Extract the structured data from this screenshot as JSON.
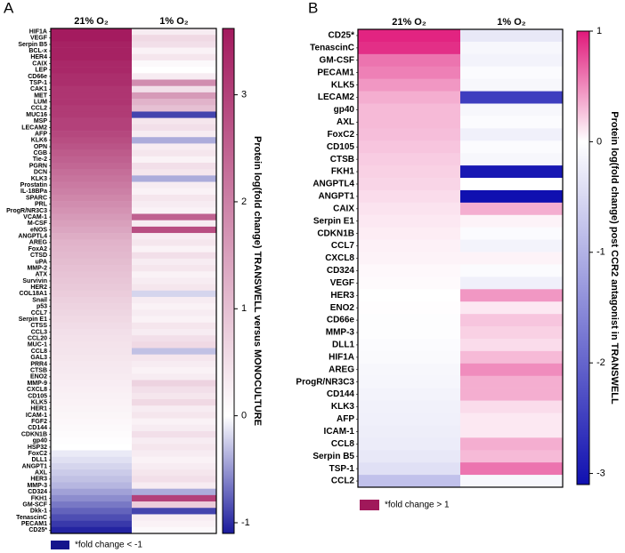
{
  "chart_data": [
    {
      "type": "heatmap",
      "panel_label": "A",
      "columns": [
        "21% O₂",
        "1% O₂"
      ],
      "rows": [
        "HIF1A",
        "VEGF",
        "Serpin B5",
        "BCL-x",
        "HER4",
        "CAIX",
        "LEP",
        "CD66e",
        "TSP-1",
        "CAK1",
        "MET",
        "LUM",
        "CCL2",
        "MUC16",
        "MSP",
        "LECAM2",
        "AFP",
        "KLK6",
        "OPN",
        "CGB",
        "Tie-2",
        "PGRN",
        "DCN",
        "KLK3",
        "Prostatin",
        "IL-18BPa",
        "SPARC",
        "PRL",
        "ProgR/NR3C3",
        "VCAM-1",
        "M-CSF",
        "eNOS",
        "ANGPTL4",
        "AREG",
        "FoxA2",
        "CTSD",
        "uPA",
        "MMP-2",
        "ATX",
        "Survivin",
        "HER2",
        "COL18A1",
        "Snail",
        "p53",
        "CCL7",
        "Serpin E1",
        "CTSS",
        "CCL3",
        "CCL20",
        "MUC-1",
        "CCL8",
        "GAL3",
        "PRR4",
        "CTSB",
        "ENO2",
        "MMP-9",
        "CXCL8",
        "CD105",
        "KLK5",
        "HER1",
        "ICAM-1",
        "FGF2",
        "CD144",
        "CDKN1B",
        "gp40",
        "HSP32",
        "FoxC2",
        "DLL1",
        "ANGPT1",
        "AXL",
        "HER3",
        "MMP-3",
        "CD324",
        "FKH1",
        "GM-SCF",
        "Dkk-1",
        "TenascinC",
        "PECAM1",
        "CD25*"
      ],
      "values": [
        [
          3.6,
          0.3
        ],
        [
          3.6,
          0.6
        ],
        [
          3.5,
          0.5
        ],
        [
          3.5,
          0.2
        ],
        [
          3.5,
          0.4
        ],
        [
          3.4,
          0.1
        ],
        [
          3.4,
          0.0
        ],
        [
          3.3,
          0.3
        ],
        [
          3.3,
          1.8
        ],
        [
          3.2,
          0.5
        ],
        [
          3.2,
          1.6
        ],
        [
          3.2,
          1.2
        ],
        [
          3.1,
          1.0
        ],
        [
          3.1,
          -0.9
        ],
        [
          3.0,
          0.4
        ],
        [
          3.0,
          0.5
        ],
        [
          2.9,
          0.3
        ],
        [
          2.8,
          -0.4
        ],
        [
          2.7,
          0.3
        ],
        [
          2.6,
          0.4
        ],
        [
          2.5,
          0.2
        ],
        [
          2.4,
          0.5
        ],
        [
          2.3,
          0.4
        ],
        [
          2.2,
          -0.4
        ],
        [
          2.1,
          0.3
        ],
        [
          2.0,
          0.2
        ],
        [
          1.9,
          0.4
        ],
        [
          1.8,
          0.3
        ],
        [
          1.7,
          0.2
        ],
        [
          1.6,
          2.5
        ],
        [
          1.5,
          0.3
        ],
        [
          1.4,
          2.8
        ],
        [
          1.3,
          0.3
        ],
        [
          1.2,
          0.4
        ],
        [
          1.15,
          0.2
        ],
        [
          1.1,
          0.5
        ],
        [
          1.05,
          0.3
        ],
        [
          1.0,
          0.4
        ],
        [
          0.95,
          0.2
        ],
        [
          0.9,
          0.3
        ],
        [
          0.85,
          0.4
        ],
        [
          0.8,
          -0.2
        ],
        [
          0.75,
          0.3
        ],
        [
          0.7,
          0.2
        ],
        [
          0.65,
          0.3
        ],
        [
          0.6,
          0.2
        ],
        [
          0.55,
          0.4
        ],
        [
          0.5,
          0.3
        ],
        [
          0.48,
          0.5
        ],
        [
          0.45,
          0.6
        ],
        [
          0.42,
          -0.3
        ],
        [
          0.4,
          0.4
        ],
        [
          0.37,
          0.3
        ],
        [
          0.34,
          0.2
        ],
        [
          0.31,
          0.3
        ],
        [
          0.28,
          0.7
        ],
        [
          0.25,
          0.5
        ],
        [
          0.22,
          0.4
        ],
        [
          0.2,
          0.6
        ],
        [
          0.18,
          0.3
        ],
        [
          0.15,
          0.4
        ],
        [
          0.12,
          0.2
        ],
        [
          0.1,
          0.3
        ],
        [
          0.07,
          0.5
        ],
        [
          0.03,
          0.3
        ],
        [
          0.0,
          0.4
        ],
        [
          -0.1,
          0.3
        ],
        [
          -0.15,
          0.2
        ],
        [
          -0.2,
          0.3
        ],
        [
          -0.25,
          0.4
        ],
        [
          -0.3,
          0.5
        ],
        [
          -0.35,
          0.3
        ],
        [
          -0.45,
          -0.4
        ],
        [
          -0.55,
          3.0
        ],
        [
          -0.65,
          0.8
        ],
        [
          -0.75,
          -0.9
        ],
        [
          -0.85,
          0.3
        ],
        [
          -0.95,
          0.2
        ],
        [
          -1.05,
          0.1
        ]
      ],
      "clim": [
        -1.1,
        3.62
      ],
      "cticks": [
        -1,
        0,
        1,
        2,
        3
      ],
      "colors": {
        "low": "#1a1a9c",
        "mid": "#ffffff",
        "high": "#a31a5e"
      },
      "colorbar_label": "Protein log(fold change) TRANSWELL versus MONOCULTURE",
      "legend": {
        "color": "#14148c",
        "label": "*fold change < -1"
      }
    },
    {
      "type": "heatmap",
      "panel_label": "B",
      "columns": [
        "21% O₂",
        "1% O₂"
      ],
      "rows": [
        "CD25*",
        "TenascinC",
        "GM-CSF",
        "PECAM1",
        "KLK5",
        "LECAM2",
        "gp40",
        "AXL",
        "FoxC2",
        "CD105",
        "CTSB",
        "FKH1",
        "ANGPTL4",
        "ANGPT1",
        "CAIX",
        "Serpin E1",
        "CDKN1B",
        "CCL7",
        "CXCL8",
        "CD324",
        "VEGF",
        "HER3",
        "ENO2",
        "CD66e",
        "MMP-3",
        "DLL1",
        "HIF1A",
        "AREG",
        "ProgR/NR3C3",
        "CD144",
        "KLK3",
        "AFP",
        "ICAM-1",
        "CCL8",
        "Serpin B5",
        "TSP-1",
        "CCL2"
      ],
      "values": [
        [
          0.95,
          -0.3
        ],
        [
          0.9,
          -0.1
        ],
        [
          0.6,
          -0.15
        ],
        [
          0.55,
          -0.05
        ],
        [
          0.45,
          -0.1
        ],
        [
          0.35,
          -2.5
        ],
        [
          0.3,
          -0.1
        ],
        [
          0.3,
          -0.05
        ],
        [
          0.28,
          -0.2
        ],
        [
          0.25,
          -0.05
        ],
        [
          0.22,
          -0.1
        ],
        [
          0.2,
          -3.0
        ],
        [
          0.18,
          0.0
        ],
        [
          0.15,
          -3.1
        ],
        [
          0.12,
          0.35
        ],
        [
          0.1,
          0.05
        ],
        [
          0.08,
          -0.05
        ],
        [
          0.06,
          -0.15
        ],
        [
          0.05,
          0.05
        ],
        [
          0.03,
          -0.05
        ],
        [
          0.02,
          -0.2
        ],
        [
          0.0,
          0.45
        ],
        [
          0.01,
          0.1
        ],
        [
          -0.02,
          0.25
        ],
        [
          -0.03,
          0.2
        ],
        [
          -0.05,
          0.15
        ],
        [
          -0.07,
          0.3
        ],
        [
          -0.1,
          0.5
        ],
        [
          -0.12,
          0.35
        ],
        [
          -0.15,
          0.35
        ],
        [
          -0.18,
          0.15
        ],
        [
          -0.2,
          0.1
        ],
        [
          -0.22,
          0.1
        ],
        [
          -0.25,
          0.35
        ],
        [
          -0.3,
          0.3
        ],
        [
          -0.4,
          0.6
        ],
        [
          -0.8,
          -0.1
        ]
      ],
      "clim": [
        -3.1,
        1.0
      ],
      "cticks": [
        -3,
        -2,
        -1,
        0,
        1
      ],
      "colors": {
        "low": "#1010b0",
        "mid": "#ffffff",
        "high": "#e0187a"
      },
      "colorbar_label": "Protein log(fold change) post CCR2 antagonist in TRANSWELL",
      "legend": {
        "color": "#a0185a",
        "label": "*fold change > 1"
      }
    }
  ]
}
